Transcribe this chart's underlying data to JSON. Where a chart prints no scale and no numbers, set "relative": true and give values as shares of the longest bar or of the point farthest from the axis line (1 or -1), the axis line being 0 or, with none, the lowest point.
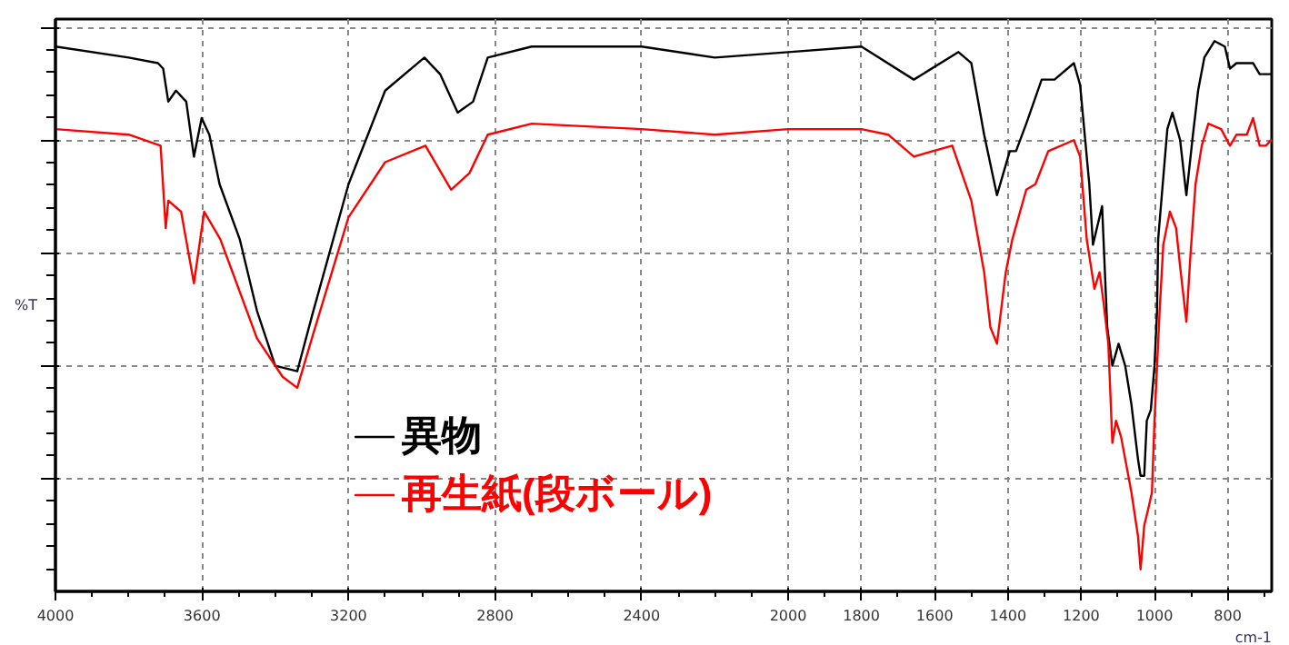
{
  "chart_data": {
    "type": "line",
    "relative": true,
    "ylabel": "%T",
    "xlabel": "cm-1",
    "xlim": [
      4000,
      680
    ],
    "xticks": [
      4000,
      3600,
      3200,
      2800,
      2400,
      2000,
      1800,
      1600,
      1400,
      1200,
      1000,
      800
    ],
    "grid": true,
    "legend": "bottom",
    "series": [
      {
        "name": "異物",
        "color": "#000000",
        "x": [
          4000,
          3800,
          3720,
          3706,
          3692,
          3671,
          3643,
          3622,
          3601,
          3580,
          3552,
          3497,
          3450,
          3400,
          3340,
          3300,
          3200,
          3100,
          2993,
          2950,
          2902,
          2860,
          2820,
          2700,
          2400,
          2200,
          2000,
          1800,
          1657,
          1535,
          1500,
          1465,
          1430,
          1395,
          1378,
          1350,
          1308,
          1273,
          1220,
          1203,
          1178,
          1168,
          1143,
          1129,
          1115,
          1098,
          1080,
          1063,
          1045,
          1038,
          1028,
          1021,
          1010,
          1000,
          993,
          990,
          965,
          951,
          930,
          913,
          895,
          881,
          864,
          836,
          808,
          794,
          776,
          731,
          713,
          682
        ],
        "values": [
          0.99,
          0.97,
          0.96,
          0.95,
          0.89,
          0.91,
          0.89,
          0.79,
          0.86,
          0.83,
          0.74,
          0.64,
          0.51,
          0.41,
          0.4,
          0.5,
          0.74,
          0.91,
          0.97,
          0.94,
          0.87,
          0.89,
          0.97,
          0.99,
          0.99,
          0.97,
          0.98,
          0.99,
          0.93,
          0.98,
          0.96,
          0.83,
          0.72,
          0.8,
          0.8,
          0.85,
          0.93,
          0.93,
          0.96,
          0.92,
          0.74,
          0.63,
          0.7,
          0.48,
          0.41,
          0.45,
          0.41,
          0.34,
          0.24,
          0.21,
          0.21,
          0.31,
          0.33,
          0.41,
          0.51,
          0.64,
          0.84,
          0.87,
          0.82,
          0.72,
          0.83,
          0.91,
          0.97,
          1.0,
          0.99,
          0.95,
          0.96,
          0.96,
          0.94,
          0.94
        ]
      },
      {
        "name": "再生紙(段ボール)",
        "color": "#ff0000",
        "x": [
          4000,
          3800,
          3713,
          3699,
          3692,
          3657,
          3622,
          3594,
          3550,
          3450,
          3380,
          3340,
          3300,
          3200,
          3100,
          2990,
          2920,
          2870,
          2820,
          2700,
          2400,
          2200,
          2000,
          1800,
          1727,
          1657,
          1552,
          1500,
          1465,
          1448,
          1430,
          1406,
          1388,
          1350,
          1325,
          1290,
          1220,
          1203,
          1185,
          1164,
          1150,
          1140,
          1126,
          1115,
          1105,
          1091,
          1063,
          1045,
          1038,
          1028,
          1017,
          1007,
          1000,
          986,
          976,
          958,
          941,
          930,
          913,
          902,
          888,
          871,
          853,
          818,
          794,
          776,
          748,
          731,
          713,
          696,
          682
        ],
        "values": [
          0.84,
          0.83,
          0.81,
          0.66,
          0.71,
          0.69,
          0.56,
          0.69,
          0.64,
          0.46,
          0.39,
          0.37,
          0.46,
          0.68,
          0.78,
          0.81,
          0.73,
          0.76,
          0.83,
          0.85,
          0.84,
          0.83,
          0.84,
          0.84,
          0.83,
          0.79,
          0.81,
          0.71,
          0.58,
          0.48,
          0.45,
          0.58,
          0.64,
          0.73,
          0.74,
          0.8,
          0.82,
          0.79,
          0.64,
          0.55,
          0.58,
          0.53,
          0.45,
          0.27,
          0.31,
          0.28,
          0.18,
          0.1,
          0.04,
          0.12,
          0.15,
          0.18,
          0.31,
          0.51,
          0.63,
          0.69,
          0.66,
          0.59,
          0.49,
          0.61,
          0.74,
          0.81,
          0.85,
          0.84,
          0.81,
          0.83,
          0.83,
          0.86,
          0.81,
          0.81,
          0.82
        ]
      }
    ]
  }
}
